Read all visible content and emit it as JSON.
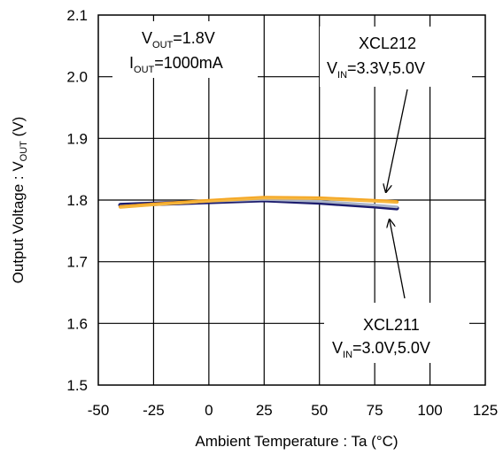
{
  "chart_data": {
    "type": "line",
    "xlabel_main": "Ambient Temperature : Ta (",
    "xlabel_unit": "°C",
    "xlabel_close": ")",
    "ylabel_main": "Output Voltage : V",
    "ylabel_sub": "OUT",
    "ylabel_unit": " (V)",
    "xlim": [
      -50,
      125
    ],
    "ylim": [
      1.5,
      2.1
    ],
    "x_ticks": [
      "-50",
      "-25",
      "0",
      "25",
      "50",
      "75",
      "100",
      "125"
    ],
    "y_ticks": [
      "1.5",
      "1.6",
      "1.7",
      "1.8",
      "1.9",
      "2.0",
      "2.1"
    ],
    "x_tick_values": [
      -50,
      -25,
      0,
      25,
      50,
      75,
      100,
      125
    ],
    "y_tick_values": [
      1.5,
      1.6,
      1.7,
      1.8,
      1.9,
      2.0,
      2.1
    ],
    "grid": true,
    "series": [
      {
        "color": "#1c1c6e",
        "x": [
          -40,
          -25,
          0,
          25,
          50,
          75,
          85
        ],
        "y": [
          1.792,
          1.794,
          1.797,
          1.8,
          1.796,
          1.79,
          1.787
        ]
      },
      {
        "color": "#aab4c8",
        "x": [
          -40,
          -25,
          0,
          25,
          50,
          75,
          85
        ],
        "y": [
          1.79,
          1.793,
          1.798,
          1.801,
          1.798,
          1.792,
          1.789
        ]
      },
      {
        "color": "#f5a623",
        "x": [
          -40,
          -25,
          0,
          25,
          50,
          75,
          85
        ],
        "y": [
          1.789,
          1.793,
          1.799,
          1.804,
          1.803,
          1.799,
          1.797
        ]
      },
      {
        "color": "#f5b841",
        "x": [
          -40,
          -25,
          0,
          25,
          50,
          75,
          85
        ],
        "y": [
          1.788,
          1.792,
          1.798,
          1.803,
          1.802,
          1.798,
          1.796
        ]
      }
    ],
    "annotations": {
      "conditions": {
        "vout_main": "V",
        "vout_sub": "OUT",
        "vout_val": "=1.8V",
        "iout_main": "I",
        "iout_sub": "OUT",
        "iout_val": "=1000mA"
      },
      "xcl212": {
        "name": "XCL212",
        "vin_main": "V",
        "vin_sub": "IN",
        "vin_val": "=3.3V,5.0V"
      },
      "xcl211": {
        "name": "XCL211",
        "vin_main": "V",
        "vin_sub": "IN",
        "vin_val": "=3.0V,5.0V"
      }
    }
  }
}
